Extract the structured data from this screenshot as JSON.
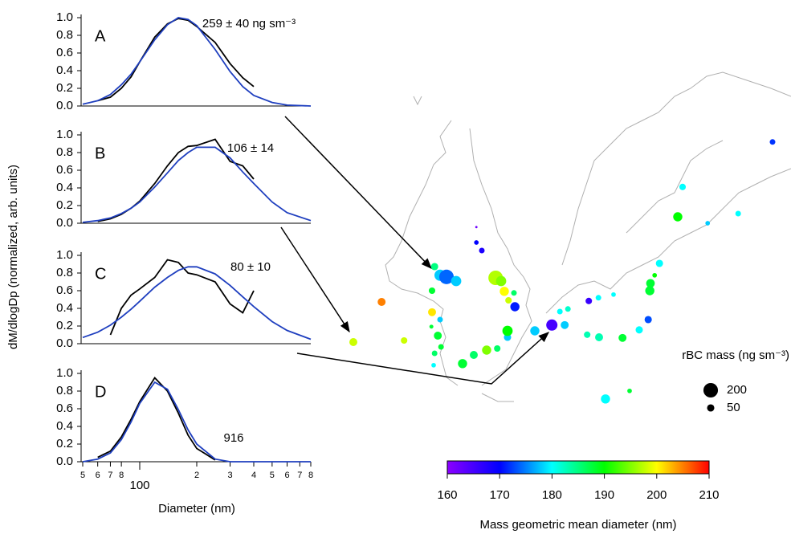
{
  "chart_data": [
    {
      "type": "line",
      "panel_label": "A",
      "annotation": "259 ± 40 ng sm⁻³",
      "y_label": "dM/dlogDp (normalized, arb. units)",
      "log_x": true,
      "xlim": [
        50,
        800
      ],
      "ylim": [
        0,
        1
      ],
      "yticks": [
        {
          "value": 0,
          "label": "0.0"
        },
        {
          "value": 0.2,
          "label": "0.2"
        },
        {
          "value": 0.4,
          "label": "0.4"
        },
        {
          "value": 0.6,
          "label": "0.6"
        },
        {
          "value": 0.8,
          "label": "0.8"
        },
        {
          "value": 1,
          "label": "1.0"
        }
      ],
      "x": [
        50,
        60,
        70,
        80,
        90,
        100,
        120,
        140,
        160,
        180,
        200,
        250,
        300,
        350,
        400,
        500,
        600,
        800
      ],
      "series": [
        {
          "color": "#000000",
          "values": [
            null,
            0.06,
            0.1,
            0.2,
            0.33,
            0.5,
            0.78,
            0.93,
            0.99,
            0.97,
            0.9,
            0.72,
            0.48,
            0.32,
            0.22,
            null,
            null,
            null
          ]
        },
        {
          "color": "#1f3fbf",
          "values": [
            0.02,
            0.06,
            0.13,
            0.24,
            0.36,
            0.5,
            0.75,
            0.92,
            1.0,
            0.98,
            0.91,
            0.64,
            0.39,
            0.22,
            0.12,
            0.04,
            0.01,
            0.0
          ]
        }
      ]
    },
    {
      "type": "line",
      "panel_label": "B",
      "annotation": "106 ± 14",
      "log_x": true,
      "xlim": [
        50,
        800
      ],
      "ylim": [
        0,
        1
      ],
      "yticks": [
        {
          "value": 0,
          "label": "0.0"
        },
        {
          "value": 0.2,
          "label": "0.2"
        },
        {
          "value": 0.4,
          "label": "0.4"
        },
        {
          "value": 0.6,
          "label": "0.6"
        },
        {
          "value": 0.8,
          "label": "0.8"
        },
        {
          "value": 1,
          "label": "1.0"
        }
      ],
      "x": [
        50,
        60,
        70,
        80,
        90,
        100,
        120,
        140,
        160,
        180,
        200,
        250,
        300,
        350,
        400,
        500,
        600,
        800
      ],
      "series": [
        {
          "color": "#000000",
          "values": [
            null,
            0.02,
            0.05,
            0.1,
            0.17,
            0.25,
            0.45,
            0.65,
            0.8,
            0.87,
            0.88,
            0.95,
            0.7,
            0.65,
            0.5,
            null,
            null,
            null
          ]
        },
        {
          "color": "#1f3fbf",
          "values": [
            0.01,
            0.03,
            0.06,
            0.11,
            0.17,
            0.24,
            0.41,
            0.57,
            0.71,
            0.8,
            0.86,
            0.86,
            0.74,
            0.58,
            0.45,
            0.24,
            0.12,
            0.03
          ]
        }
      ]
    },
    {
      "type": "line",
      "panel_label": "C",
      "annotation": "80 ± 10",
      "log_x": true,
      "xlim": [
        50,
        800
      ],
      "ylim": [
        0,
        1
      ],
      "yticks": [
        {
          "value": 0,
          "label": "0.0"
        },
        {
          "value": 0.2,
          "label": "0.2"
        },
        {
          "value": 0.4,
          "label": "0.4"
        },
        {
          "value": 0.6,
          "label": "0.6"
        },
        {
          "value": 0.8,
          "label": "0.8"
        },
        {
          "value": 1,
          "label": "1.0"
        }
      ],
      "x": [
        50,
        60,
        70,
        80,
        90,
        100,
        120,
        140,
        160,
        180,
        200,
        250,
        300,
        350,
        400,
        500,
        600,
        800
      ],
      "series": [
        {
          "color": "#000000",
          "values": [
            null,
            null,
            0.1,
            0.4,
            0.55,
            0.62,
            0.75,
            0.95,
            0.92,
            0.8,
            0.78,
            0.7,
            0.45,
            0.35,
            0.6,
            null,
            null,
            null
          ]
        },
        {
          "color": "#1f3fbf",
          "values": [
            0.07,
            0.13,
            0.21,
            0.3,
            0.39,
            0.48,
            0.64,
            0.75,
            0.83,
            0.87,
            0.87,
            0.79,
            0.66,
            0.53,
            0.42,
            0.25,
            0.15,
            0.05
          ]
        }
      ]
    },
    {
      "type": "line",
      "panel_label": "D",
      "annotation": "916",
      "x_label": "Diameter (nm)",
      "log_x": true,
      "xlim": [
        50,
        800
      ],
      "ylim": [
        0,
        1
      ],
      "xticks": [
        {
          "value": 50,
          "label": "5"
        },
        {
          "value": 60,
          "label": "6"
        },
        {
          "value": 70,
          "label": "7"
        },
        {
          "value": 80,
          "label": "8"
        },
        100,
        {
          "value": 200,
          "label": "2"
        },
        {
          "value": 300,
          "label": "3"
        },
        {
          "value": 400,
          "label": "4"
        },
        {
          "value": 500,
          "label": "5"
        },
        {
          "value": 600,
          "label": "6"
        },
        {
          "value": 700,
          "label": "7"
        },
        {
          "value": 800,
          "label": "8"
        }
      ],
      "yticks": [
        {
          "value": 0,
          "label": "0.0"
        },
        {
          "value": 0.2,
          "label": "0.2"
        },
        {
          "value": 0.4,
          "label": "0.4"
        },
        {
          "value": 0.6,
          "label": "0.6"
        },
        {
          "value": 0.8,
          "label": "0.8"
        },
        {
          "value": 1,
          "label": "1.0"
        }
      ],
      "x": [
        50,
        60,
        70,
        80,
        90,
        100,
        120,
        140,
        160,
        180,
        200,
        250,
        300,
        350,
        400,
        500,
        600,
        800
      ],
      "series": [
        {
          "color": "#000000",
          "values": [
            null,
            0.05,
            0.12,
            0.28,
            0.48,
            0.68,
            0.95,
            0.8,
            0.55,
            0.3,
            0.15,
            0.02,
            null,
            null,
            null,
            null,
            null,
            null
          ]
        },
        {
          "color": "#1f3fbf",
          "values": [
            0.0,
            0.03,
            0.1,
            0.25,
            0.45,
            0.66,
            0.9,
            0.82,
            0.59,
            0.36,
            0.2,
            0.03,
            0.0,
            0.0,
            0.0,
            0.0,
            0.0,
            0.0
          ]
        }
      ]
    },
    {
      "type": "scatter-map",
      "lonlim": [
        116,
        130
      ],
      "latlim": [
        30,
        41
      ],
      "points": {
        "lon": [
          116.5,
          117.38,
          118.08,
          120.33,
          120.33,
          120.5,
          119.03,
          119.2,
          119.4,
          119.7,
          118.95,
          120.93,
          121.1,
          121.2,
          121.5,
          121.53,
          121.33,
          118.95,
          119.2,
          118.93,
          119.13,
          119.23,
          119.03,
          119.0,
          119.9,
          120.25,
          120.65,
          120.98,
          121.3,
          121.3,
          122.15,
          122.68,
          123.08,
          122.93,
          123.18,
          123.83,
          124.13,
          124.6,
          123.78,
          124.15,
          124.88,
          125.4,
          125.68,
          125.73,
          125.75,
          125.88,
          126.03,
          124.35,
          125.1,
          126.6,
          126.75,
          127.53,
          128.48,
          129.55
        ],
        "lat": [
          32.35,
          33.6,
          32.4,
          35.93,
          35.45,
          35.2,
          34.7,
          34.43,
          34.38,
          34.25,
          33.95,
          34.35,
          34.25,
          33.93,
          33.88,
          33.45,
          33.65,
          33.28,
          33.05,
          32.83,
          32.55,
          32.2,
          32.0,
          31.63,
          31.68,
          31.95,
          32.1,
          32.15,
          32.5,
          32.7,
          32.7,
          32.88,
          32.88,
          33.3,
          33.38,
          33.63,
          33.73,
          33.83,
          32.58,
          32.5,
          32.48,
          32.73,
          33.05,
          33.95,
          34.18,
          34.43,
          34.8,
          30.58,
          30.83,
          36.25,
          37.18,
          36.05,
          36.35,
          38.58
        ],
        "diameter": [
          198,
          205,
          198,
          162,
          170,
          168,
          185,
          178,
          174,
          178,
          188,
          197,
          195,
          200,
          186,
          171,
          198,
          201,
          178,
          188,
          188,
          188,
          186,
          180,
          188,
          186,
          195,
          186,
          178,
          190,
          178,
          165,
          178,
          180,
          182,
          166,
          180,
          180,
          183,
          183,
          188,
          180,
          173,
          188,
          188,
          190,
          180,
          180,
          188,
          190,
          180,
          178,
          180,
          172
        ],
        "mass": [
          60,
          60,
          40,
          5,
          20,
          30,
          50,
          120,
          200,
          100,
          40,
          200,
          100,
          80,
          30,
          80,
          40,
          60,
          30,
          15,
          60,
          30,
          30,
          20,
          80,
          60,
          80,
          40,
          50,
          100,
          80,
          120,
          60,
          30,
          30,
          40,
          30,
          20,
          40,
          60,
          60,
          50,
          50,
          80,
          70,
          20,
          50,
          80,
          20,
          80,
          40,
          20,
          30,
          30
        ]
      },
      "colorbar": {
        "label": "Mass geometric mean diameter (nm)",
        "lim": [
          160,
          210
        ],
        "ticks": [
          160,
          170,
          180,
          190,
          200,
          210
        ],
        "colormap": [
          "#8b00ff",
          "#0000ff",
          "#00ffff",
          "#00ff00",
          "#ffff00",
          "#ff0000"
        ]
      },
      "size_legend": {
        "title": "rBC mass (ng sm⁻³)",
        "values": [
          200,
          50
        ]
      }
    }
  ]
}
